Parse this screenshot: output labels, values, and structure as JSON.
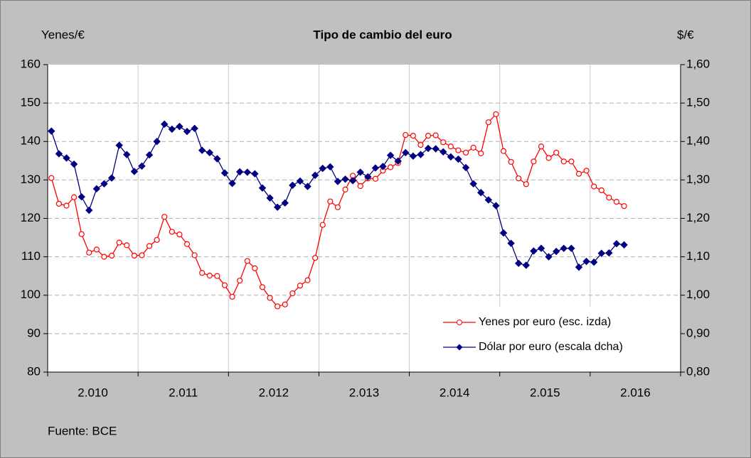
{
  "chart_data": {
    "type": "line",
    "title": "Tipo de cambio del euro",
    "y_label": "Yenes/€",
    "y2_label": "$/€",
    "source": "Fuente: BCE",
    "categories": [
      null,
      null,
      null,
      null,
      null,
      null,
      "2.010",
      null,
      null,
      null,
      null,
      null,
      null,
      null,
      null,
      null,
      null,
      null,
      "2.011",
      null,
      null,
      null,
      null,
      null,
      null,
      null,
      null,
      null,
      null,
      null,
      "2.012",
      null,
      null,
      null,
      null,
      null,
      null,
      null,
      null,
      null,
      null,
      null,
      "2.013",
      null,
      null,
      null,
      null,
      null,
      null,
      null,
      null,
      null,
      null,
      null,
      "2.014",
      null,
      null,
      null,
      null,
      null,
      null,
      null,
      null,
      null,
      null,
      null,
      "2.015",
      null,
      null,
      null,
      null,
      null,
      null,
      null,
      null,
      null,
      null,
      null,
      "2.016",
      null,
      null,
      null,
      null,
      null
    ],
    "ylim": [
      80,
      160
    ],
    "yticks": [
      80,
      90,
      100,
      110,
      120,
      130,
      140,
      150,
      160
    ],
    "y2lim": [
      0.8,
      1.6
    ],
    "y2ticks": [
      {
        "value": 0.8,
        "label": "0,80"
      },
      {
        "value": 0.9,
        "label": "0,90"
      },
      {
        "value": 1.0,
        "label": "1,00"
      },
      {
        "value": 1.1,
        "label": "1,10"
      },
      {
        "value": 1.2,
        "label": "1,20"
      },
      {
        "value": 1.3,
        "label": "1,30"
      },
      {
        "value": 1.4,
        "label": "1,40"
      },
      {
        "value": 1.5,
        "label": "1,50"
      },
      {
        "value": 1.6,
        "label": "1,60"
      }
    ],
    "grid": true,
    "legend": "lower right",
    "series": [
      {
        "name": "Yenes por euro (esc. izda)",
        "color": "#ff0000",
        "marker": "circle",
        "values": [
          130.5,
          123.8,
          123.3,
          125.5,
          115.9,
          111.1,
          111.9,
          110.0,
          110.3,
          113.7,
          113.0,
          110.3,
          110.4,
          112.8,
          114.4,
          120.4,
          116.5,
          115.8,
          113.3,
          110.4,
          105.8,
          105.1,
          105.0,
          102.6,
          99.6,
          103.8,
          108.9,
          107.0,
          102.1,
          99.3,
          97.1,
          97.6,
          100.5,
          102.5,
          103.9,
          109.7,
          118.3,
          124.4,
          122.9,
          127.5,
          131.1,
          128.4,
          130.4,
          130.3,
          132.4,
          133.3,
          134.4,
          141.7,
          141.5,
          139.1,
          141.5,
          141.6,
          139.8,
          138.7,
          137.7,
          137.1,
          138.4,
          136.9,
          145.0,
          147.1,
          137.5,
          134.7,
          130.4,
          128.9,
          134.8,
          138.7,
          135.7,
          137.1,
          134.8,
          134.8,
          131.6,
          132.4,
          128.3,
          127.3,
          125.4,
          124.3,
          123.2,
          null,
          null,
          null,
          null,
          null,
          null,
          null
        ]
      },
      {
        "name": "Dólar por euro (escala dcha)",
        "color": "#000080",
        "marker": "diamond",
        "axis": "y2",
        "values": [
          1.427,
          1.368,
          1.357,
          1.341,
          1.256,
          1.221,
          1.277,
          1.29,
          1.305,
          1.39,
          1.366,
          1.322,
          1.336,
          1.365,
          1.4,
          1.445,
          1.432,
          1.439,
          1.426,
          1.434,
          1.377,
          1.371,
          1.355,
          1.318,
          1.291,
          1.321,
          1.32,
          1.316,
          1.279,
          1.253,
          1.229,
          1.24,
          1.286,
          1.297,
          1.283,
          1.312,
          1.33,
          1.334,
          1.296,
          1.302,
          1.298,
          1.32,
          1.308,
          1.331,
          1.335,
          1.364,
          1.349,
          1.371,
          1.362,
          1.366,
          1.382,
          1.381,
          1.373,
          1.36,
          1.354,
          1.332,
          1.29,
          1.267,
          1.248,
          1.233,
          1.162,
          1.135,
          1.083,
          1.078,
          1.115,
          1.122,
          1.1,
          1.114,
          1.122,
          1.122,
          1.073,
          1.088,
          1.086,
          1.109,
          1.11,
          1.134,
          1.131,
          null,
          null,
          null,
          null,
          null,
          null,
          null
        ]
      }
    ]
  }
}
